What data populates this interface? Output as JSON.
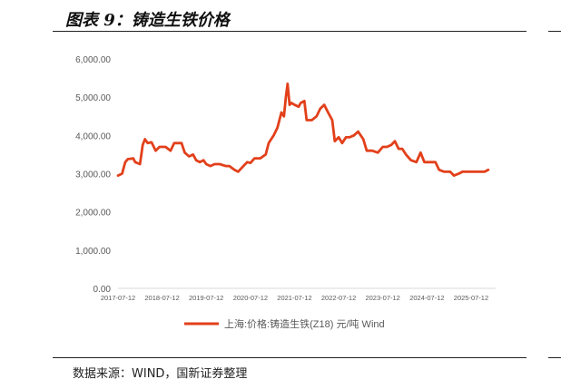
{
  "figure": {
    "title": "图表 9：铸造生铁价格",
    "source": "数据来源：WIND，国新证券整理"
  },
  "colors": {
    "series": "#E2401B",
    "axis_text": "#595959",
    "rule": "#222222"
  },
  "chart_data": {
    "type": "line",
    "title": "",
    "xlabel": "",
    "ylabel": "",
    "ylim": [
      0,
      6000
    ],
    "yticks": [
      "0.00",
      "1,000.00",
      "2,000.00",
      "3,000.00",
      "4,000.00",
      "5,000.00",
      "6,000.00"
    ],
    "xticks": [
      "2017-07-12",
      "2018-07-12",
      "2019-07-12",
      "2020-07-12",
      "2021-07-12",
      "2022-07-12",
      "2023-07-12",
      "2024-07-12",
      "2025-07-12"
    ],
    "xlim": [
      "2017-07-12",
      "2026-01-31"
    ],
    "grid": false,
    "legend_position": "bottom",
    "series": [
      {
        "name": "上海:价格:铸造生铁(Z18) 元/吨 Wind",
        "points": [
          [
            "2017-07-12",
            2950
          ],
          [
            "2017-08-15",
            3000
          ],
          [
            "2017-09-10",
            3300
          ],
          [
            "2017-10-01",
            3380
          ],
          [
            "2017-11-15",
            3400
          ],
          [
            "2017-12-01",
            3300
          ],
          [
            "2018-01-10",
            3250
          ],
          [
            "2018-02-01",
            3750
          ],
          [
            "2018-02-20",
            3900
          ],
          [
            "2018-03-15",
            3800
          ],
          [
            "2018-04-15",
            3820
          ],
          [
            "2018-05-20",
            3600
          ],
          [
            "2018-06-20",
            3700
          ],
          [
            "2018-08-10",
            3700
          ],
          [
            "2018-09-20",
            3600
          ],
          [
            "2018-10-20",
            3800
          ],
          [
            "2018-12-20",
            3800
          ],
          [
            "2019-01-15",
            3550
          ],
          [
            "2019-02-20",
            3450
          ],
          [
            "2019-03-25",
            3500
          ],
          [
            "2019-04-20",
            3350
          ],
          [
            "2019-05-20",
            3300
          ],
          [
            "2019-06-20",
            3350
          ],
          [
            "2019-07-12",
            3250
          ],
          [
            "2019-08-15",
            3200
          ],
          [
            "2019-09-20",
            3250
          ],
          [
            "2019-11-01",
            3250
          ],
          [
            "2019-12-20",
            3200
          ],
          [
            "2020-01-20",
            3200
          ],
          [
            "2020-03-01",
            3100
          ],
          [
            "2020-04-01",
            3050
          ],
          [
            "2020-05-15",
            3200
          ],
          [
            "2020-06-15",
            3300
          ],
          [
            "2020-07-12",
            3280
          ],
          [
            "2020-08-15",
            3400
          ],
          [
            "2020-10-01",
            3400
          ],
          [
            "2020-11-15",
            3500
          ],
          [
            "2020-12-10",
            3800
          ],
          [
            "2021-01-20",
            4000
          ],
          [
            "2021-02-20",
            4200
          ],
          [
            "2021-03-25",
            4600
          ],
          [
            "2021-04-15",
            4500
          ],
          [
            "2021-05-01",
            5000
          ],
          [
            "2021-05-15",
            5350
          ],
          [
            "2021-06-01",
            4800
          ],
          [
            "2021-06-15",
            4850
          ],
          [
            "2021-07-12",
            4800
          ],
          [
            "2021-08-15",
            4750
          ],
          [
            "2021-09-01",
            4850
          ],
          [
            "2021-10-01",
            4900
          ],
          [
            "2021-10-20",
            4400
          ],
          [
            "2021-12-01",
            4400
          ],
          [
            "2022-01-10",
            4500
          ],
          [
            "2022-02-10",
            4700
          ],
          [
            "2022-03-15",
            4800
          ],
          [
            "2022-04-15",
            4600
          ],
          [
            "2022-05-20",
            4400
          ],
          [
            "2022-06-10",
            3850
          ],
          [
            "2022-07-12",
            3950
          ],
          [
            "2022-08-10",
            3800
          ],
          [
            "2022-09-10",
            3950
          ],
          [
            "2022-10-10",
            3950
          ],
          [
            "2022-11-15",
            4000
          ],
          [
            "2022-12-20",
            4100
          ],
          [
            "2023-02-01",
            3900
          ],
          [
            "2023-03-01",
            3600
          ],
          [
            "2023-04-15",
            3600
          ],
          [
            "2023-06-01",
            3550
          ],
          [
            "2023-07-12",
            3700
          ],
          [
            "2023-08-15",
            3700
          ],
          [
            "2023-09-20",
            3750
          ],
          [
            "2023-10-20",
            3850
          ],
          [
            "2023-11-20",
            3650
          ],
          [
            "2023-12-20",
            3650
          ],
          [
            "2024-01-20",
            3500
          ],
          [
            "2024-03-01",
            3350
          ],
          [
            "2024-04-15",
            3300
          ],
          [
            "2024-05-20",
            3550
          ],
          [
            "2024-06-20",
            3300
          ],
          [
            "2024-07-12",
            3300
          ],
          [
            "2024-09-20",
            3300
          ],
          [
            "2024-10-20",
            3100
          ],
          [
            "2024-12-01",
            3050
          ],
          [
            "2025-01-20",
            3050
          ],
          [
            "2025-02-20",
            2950
          ],
          [
            "2025-04-01",
            3000
          ],
          [
            "2025-05-01",
            3050
          ],
          [
            "2025-07-12",
            3050
          ],
          [
            "2025-09-20",
            3050
          ],
          [
            "2025-11-01",
            3050
          ],
          [
            "2025-12-01",
            3100
          ]
        ]
      }
    ]
  }
}
